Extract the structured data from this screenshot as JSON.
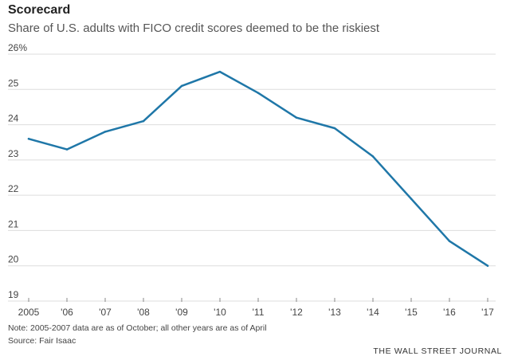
{
  "header": {
    "title": "Scorecard",
    "subtitle": "Share of U.S. adults with FICO credit scores deemed to be the riskiest"
  },
  "chart_data": {
    "type": "line",
    "x": [
      "2005",
      "'06",
      "'07",
      "'08",
      "'09",
      "'10",
      "'11",
      "'12",
      "'13",
      "'14",
      "'15",
      "'16",
      "'17"
    ],
    "y_tick_labels": [
      "26%",
      "25",
      "24",
      "23",
      "22",
      "21",
      "20",
      "19"
    ],
    "y_tick_values": [
      26,
      25,
      24,
      23,
      22,
      21,
      20,
      19
    ],
    "series": [
      {
        "values": [
          23.6,
          23.3,
          23.8,
          24.1,
          25.1,
          25.5,
          24.9,
          24.2,
          23.9,
          23.1,
          21.9,
          20.7,
          20.0
        ]
      }
    ],
    "ylim": [
      19,
      26
    ],
    "grid": true,
    "line_color": "#1f77a8",
    "grid_color": "#dddddd",
    "title": "",
    "xlabel": "",
    "ylabel": ""
  },
  "footer": {
    "note": "Note: 2005-2007 data are as of October; all other years are as of April",
    "source": "Source: Fair Isaac",
    "brand": "THE WALL STREET JOURNAL"
  }
}
